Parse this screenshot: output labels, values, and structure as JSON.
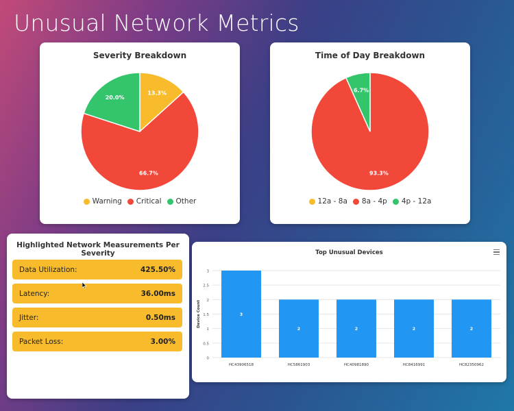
{
  "page": {
    "title": "Unusual Network Metrics"
  },
  "colors": {
    "warning": "#f8bb2c",
    "critical": "#f1483a",
    "other": "#34c46c",
    "bar": "#2196f3",
    "measure_row": "#f8bb2c"
  },
  "severity_card": {
    "title": "Severity Breakdown",
    "chart_data": {
      "type": "pie",
      "slices": [
        {
          "label": "Warning",
          "value": 13.3,
          "display": "13.3%",
          "color": "#f8bb2c"
        },
        {
          "label": "Critical",
          "value": 66.7,
          "display": "66.7%",
          "color": "#f1483a"
        },
        {
          "label": "Other",
          "value": 20.0,
          "display": "20.0%",
          "color": "#34c46c"
        }
      ],
      "legend": [
        "Warning",
        "Critical",
        "Other"
      ],
      "legend_position": "bottom"
    }
  },
  "tod_card": {
    "title": "Time of Day Breakdown",
    "chart_data": {
      "type": "pie",
      "slices": [
        {
          "label": "12a - 8a",
          "value": 0,
          "display": "",
          "color": "#f8bb2c"
        },
        {
          "label": "8a - 4p",
          "value": 93.3,
          "display": "93.3%",
          "color": "#f1483a"
        },
        {
          "label": "4p - 12a",
          "value": 6.7,
          "display": "6.7%",
          "color": "#34c46c"
        }
      ],
      "legend": [
        "12a - 8a",
        "8a - 4p",
        "4p - 12a"
      ],
      "legend_position": "bottom"
    }
  },
  "measurements_card": {
    "title": "Highlighted Network Measurements Per Severity",
    "rows": [
      {
        "label": "Data Utilization:",
        "value": "425.50%"
      },
      {
        "label": "Latency:",
        "value": "36.00ms"
      },
      {
        "label": "Jitter:",
        "value": "0.50ms"
      },
      {
        "label": "Packet Loss:",
        "value": "3.00%"
      }
    ]
  },
  "devices_card": {
    "title": "Top Unusual Devices",
    "chart_data": {
      "type": "bar",
      "categories": [
        "HC43906518",
        "HC5861903",
        "HC40981890",
        "HC8416991",
        "HC82350962"
      ],
      "values": [
        3,
        2,
        2,
        2,
        2
      ],
      "data_labels": [
        "3",
        "2",
        "2",
        "2",
        "2"
      ],
      "ylabel": "Device Count",
      "xlabel": "",
      "ylim": [
        0,
        3
      ],
      "yticks": [
        "0",
        "0.5",
        "1",
        "1.5",
        "2",
        "2.5",
        "3"
      ],
      "grid": true
    }
  }
}
